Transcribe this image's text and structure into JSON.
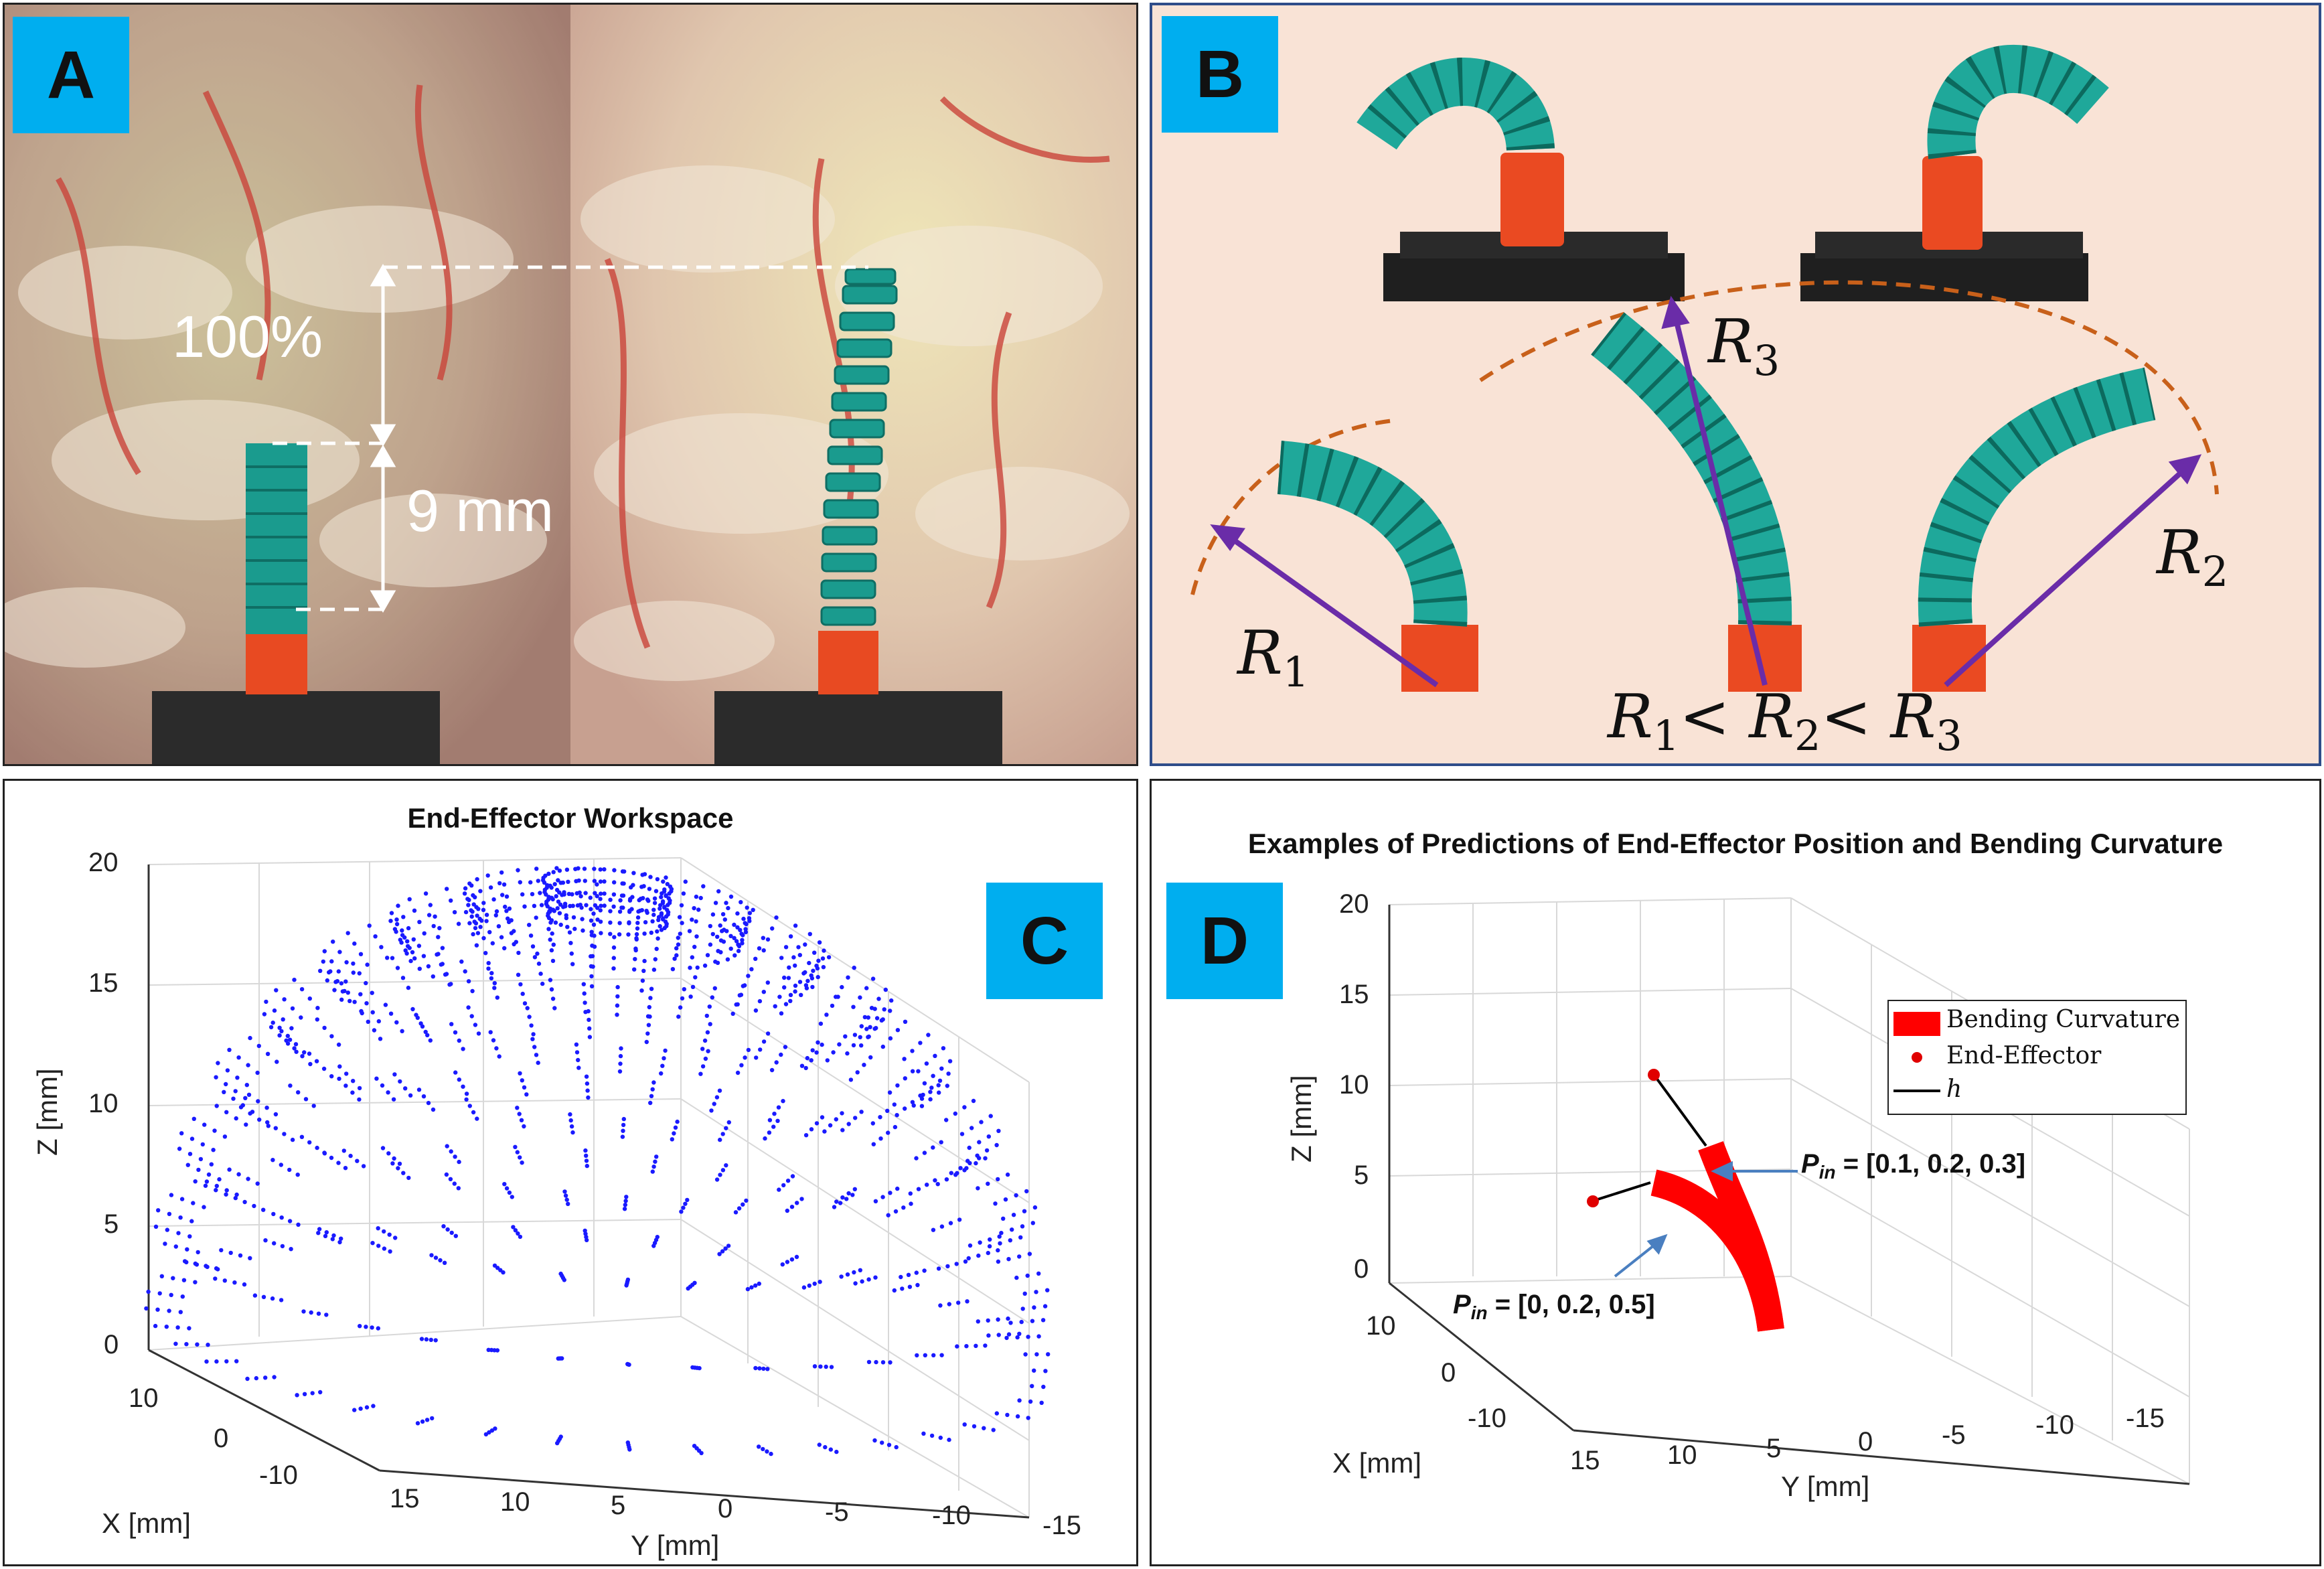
{
  "panel_a": {
    "badge": "A",
    "percent_label": "100%",
    "length_label": "9 mm"
  },
  "panel_b": {
    "badge": "B",
    "r1": "R",
    "r1_sub": "1",
    "r2": "R",
    "r2_sub": "2",
    "r3": "R",
    "r3_sub": "3",
    "relation": {
      "r": "R",
      "lt": "<",
      "s1": "1",
      "s2": "2",
      "s3": "3"
    }
  },
  "panel_c": {
    "badge": "C",
    "chart_data": {
      "type": "scatter",
      "title": "End-Effector Workspace",
      "xlabel": "X [mm]",
      "ylabel": "Y [mm]",
      "zlabel": "Z [mm]",
      "x_ticks": [
        "10",
        "0",
        "-10"
      ],
      "y_ticks": [
        "15",
        "10",
        "5",
        "0",
        "-5",
        "-10",
        "-15"
      ],
      "z_ticks": [
        "0",
        "5",
        "10",
        "15",
        "20"
      ],
      "zlim": [
        0,
        20
      ],
      "marker_color": "#1a1aff",
      "shape": "dome of end-effector positions, radius ~14 mm, height up to ~16 mm"
    }
  },
  "panel_d": {
    "badge": "D",
    "chart_data": {
      "type": "line",
      "title": "Examples of Predictions of End-Effector Position and Bending Curvature",
      "xlabel": "X [mm]",
      "ylabel": "Y [mm]",
      "zlabel": "Z [mm]",
      "x_ticks": [
        "10",
        "0",
        "-10"
      ],
      "y_ticks": [
        "15",
        "10",
        "5",
        "0",
        "-5",
        "-10",
        "-15"
      ],
      "z_ticks": [
        "0",
        "5",
        "10",
        "15",
        "20"
      ],
      "zlim": [
        0,
        20
      ],
      "legend": [
        "Bending Curvature",
        "End-Effector",
        "h"
      ],
      "series_colors": {
        "curvature": "#ff0000",
        "end_effector": "#e00000",
        "h": "#000000"
      }
    },
    "annotations": {
      "p_in_1": {
        "sym": "P",
        "sub": "in",
        "value": " = [0.1, 0.2, 0.3]"
      },
      "p_in_2": {
        "sym": "P",
        "sub": "in",
        "value": " = [0, 0.2, 0.5]"
      }
    }
  }
}
